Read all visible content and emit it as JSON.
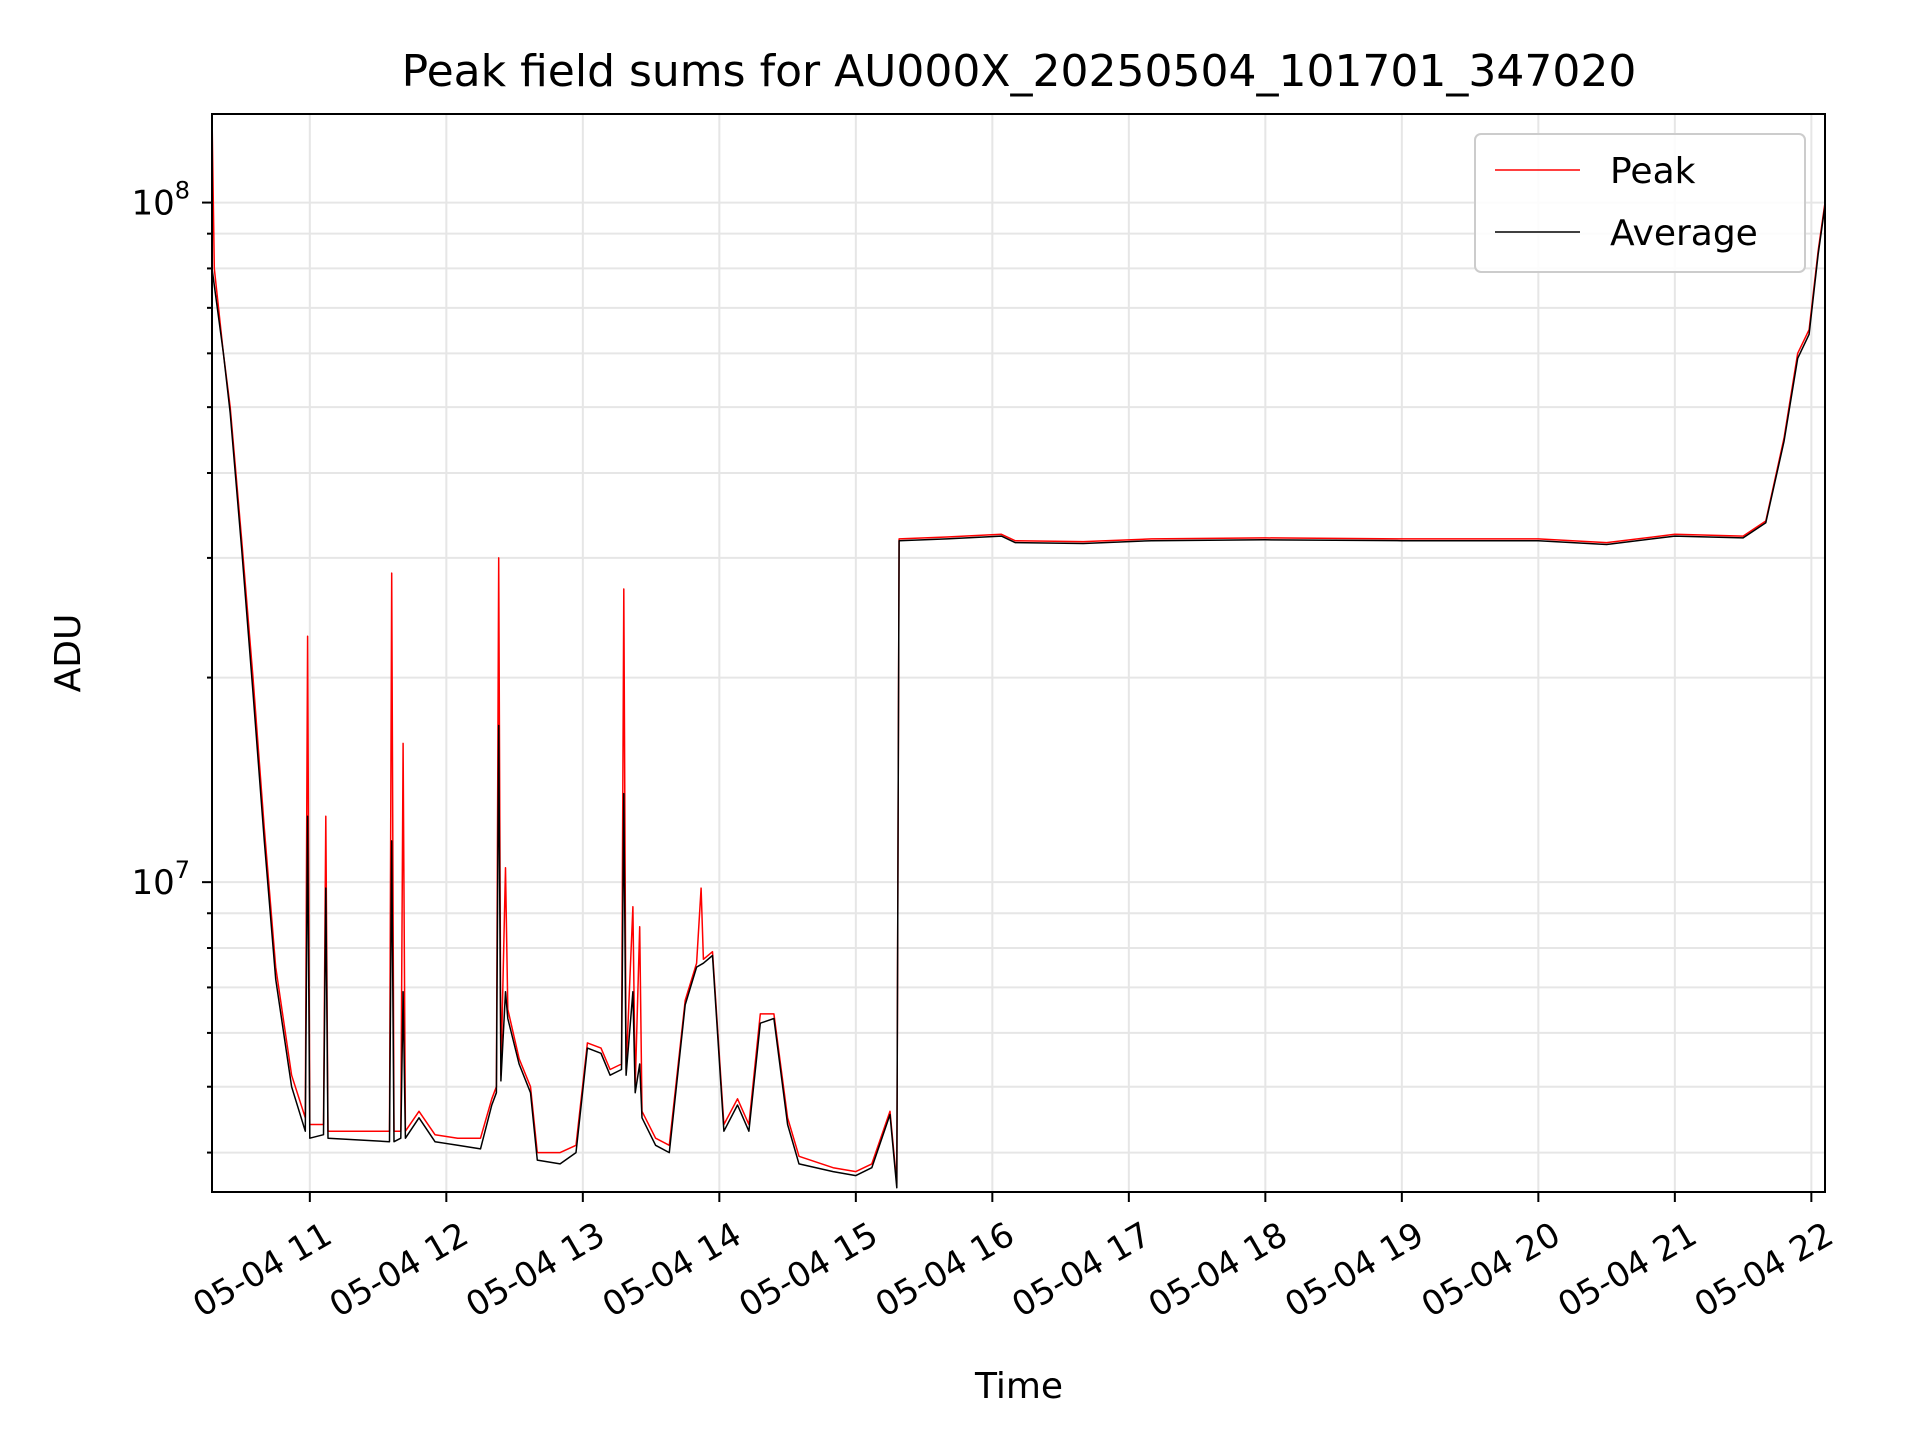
{
  "chart_data": {
    "type": "line",
    "title": "Peak field sums for AU000X_20250504_101701_347020",
    "xlabel": "Time",
    "ylabel": "ADU",
    "yscale": "log",
    "ylim": [
      3500000,
      135000000
    ],
    "xlim": [
      "2025-05-04 10:17",
      "2025-05-04 22:06"
    ],
    "grid": true,
    "legend_position": "top-right",
    "x_tick_labels": [
      "05-04 11",
      "05-04 12",
      "05-04 13",
      "05-04 14",
      "05-04 15",
      "05-04 16",
      "05-04 17",
      "05-04 18",
      "05-04 19",
      "05-04 20",
      "05-04 21",
      "05-04 22"
    ],
    "y_tick_labels": [
      {
        "base": "10",
        "exp": "7",
        "value": 10000000
      },
      {
        "base": "10",
        "exp": "8",
        "value": 100000000
      }
    ],
    "series": [
      {
        "name": "Peak",
        "color": "#ff0000",
        "points": [
          [
            "2025-05-04 10:17",
            135000000
          ],
          [
            "2025-05-04 10:18",
            80000000
          ],
          [
            "2025-05-04 10:22",
            60000000
          ],
          [
            "2025-05-04 10:25",
            50000000
          ],
          [
            "2025-05-04 10:30",
            32000000
          ],
          [
            "2025-05-04 10:35",
            20000000
          ],
          [
            "2025-05-04 10:40",
            12000000
          ],
          [
            "2025-05-04 10:45",
            7500000
          ],
          [
            "2025-05-04 10:52",
            5200000
          ],
          [
            "2025-05-04 10:58",
            4500000
          ],
          [
            "2025-05-04 10:59",
            23000000
          ],
          [
            "2025-05-04 11:00",
            4400000
          ],
          [
            "2025-05-04 11:06",
            4400000
          ],
          [
            "2025-05-04 11:07",
            12500000
          ],
          [
            "2025-05-04 11:08",
            4300000
          ],
          [
            "2025-05-04 11:35",
            4300000
          ],
          [
            "2025-05-04 11:36",
            28500000
          ],
          [
            "2025-05-04 11:37",
            4300000
          ],
          [
            "2025-05-04 11:40",
            4300000
          ],
          [
            "2025-05-04 11:41",
            16000000
          ],
          [
            "2025-05-04 11:42",
            4300000
          ],
          [
            "2025-05-04 11:48",
            4600000
          ],
          [
            "2025-05-04 11:55",
            4250000
          ],
          [
            "2025-05-04 12:05",
            4200000
          ],
          [
            "2025-05-04 12:15",
            4200000
          ],
          [
            "2025-05-04 12:20",
            4800000
          ],
          [
            "2025-05-04 12:22",
            5000000
          ],
          [
            "2025-05-04 12:23",
            30000000
          ],
          [
            "2025-05-04 12:24",
            5200000
          ],
          [
            "2025-05-04 12:26",
            10500000
          ],
          [
            "2025-05-04 12:27",
            6500000
          ],
          [
            "2025-05-04 12:32",
            5500000
          ],
          [
            "2025-05-04 12:37",
            5000000
          ],
          [
            "2025-05-04 12:40",
            4000000
          ],
          [
            "2025-05-04 12:50",
            4000000
          ],
          [
            "2025-05-04 12:57",
            4100000
          ],
          [
            "2025-05-04 13:02",
            5800000
          ],
          [
            "2025-05-04 13:08",
            5700000
          ],
          [
            "2025-05-04 13:12",
            5300000
          ],
          [
            "2025-05-04 13:17",
            5400000
          ],
          [
            "2025-05-04 13:18",
            27000000
          ],
          [
            "2025-05-04 13:19",
            5300000
          ],
          [
            "2025-05-04 13:22",
            9200000
          ],
          [
            "2025-05-04 13:23",
            5000000
          ],
          [
            "2025-05-04 13:25",
            8600000
          ],
          [
            "2025-05-04 13:26",
            4600000
          ],
          [
            "2025-05-04 13:32",
            4200000
          ],
          [
            "2025-05-04 13:38",
            4100000
          ],
          [
            "2025-05-04 13:45",
            6700000
          ],
          [
            "2025-05-04 13:50",
            7600000
          ],
          [
            "2025-05-04 13:52",
            9800000
          ],
          [
            "2025-05-04 13:53",
            7700000
          ],
          [
            "2025-05-04 13:57",
            7900000
          ],
          [
            "2025-05-04 14:02",
            4400000
          ],
          [
            "2025-05-04 14:08",
            4800000
          ],
          [
            "2025-05-04 14:13",
            4400000
          ],
          [
            "2025-05-04 14:18",
            6400000
          ],
          [
            "2025-05-04 14:24",
            6400000
          ],
          [
            "2025-05-04 14:30",
            4500000
          ],
          [
            "2025-05-04 14:35",
            3950000
          ],
          [
            "2025-05-04 14:50",
            3800000
          ],
          [
            "2025-05-04 15:00",
            3750000
          ],
          [
            "2025-05-04 15:07",
            3850000
          ],
          [
            "2025-05-04 15:15",
            4600000
          ],
          [
            "2025-05-04 15:18",
            3600000
          ],
          [
            "2025-05-04 15:19",
            32000000
          ],
          [
            "2025-05-04 15:40",
            32200000
          ],
          [
            "2025-05-04 16:04",
            32500000
          ],
          [
            "2025-05-04 16:10",
            31800000
          ],
          [
            "2025-05-04 16:40",
            31700000
          ],
          [
            "2025-05-04 17:10",
            32000000
          ],
          [
            "2025-05-04 18:00",
            32100000
          ],
          [
            "2025-05-04 19:00",
            32000000
          ],
          [
            "2025-05-04 20:00",
            32000000
          ],
          [
            "2025-05-04 20:30",
            31600000
          ],
          [
            "2025-05-04 21:00",
            32500000
          ],
          [
            "2025-05-04 21:30",
            32300000
          ],
          [
            "2025-05-04 21:40",
            34000000
          ],
          [
            "2025-05-04 21:48",
            45000000
          ],
          [
            "2025-05-04 21:54",
            60000000
          ],
          [
            "2025-05-04 21:59",
            65000000
          ],
          [
            "2025-05-04 22:03",
            85000000
          ],
          [
            "2025-05-04 22:06",
            100000000
          ]
        ]
      },
      {
        "name": "Average",
        "color": "#000000",
        "points": [
          [
            "2025-05-04 10:17",
            80000000
          ],
          [
            "2025-05-04 10:22",
            60000000
          ],
          [
            "2025-05-04 10:25",
            49000000
          ],
          [
            "2025-05-04 10:30",
            31000000
          ],
          [
            "2025-05-04 10:35",
            19000000
          ],
          [
            "2025-05-04 10:40",
            11500000
          ],
          [
            "2025-05-04 10:45",
            7200000
          ],
          [
            "2025-05-04 10:52",
            5000000
          ],
          [
            "2025-05-04 10:58",
            4300000
          ],
          [
            "2025-05-04 10:59",
            12500000
          ],
          [
            "2025-05-04 11:00",
            4200000
          ],
          [
            "2025-05-04 11:06",
            4250000
          ],
          [
            "2025-05-04 11:07",
            9800000
          ],
          [
            "2025-05-04 11:08",
            4200000
          ],
          [
            "2025-05-04 11:35",
            4150000
          ],
          [
            "2025-05-04 11:36",
            11500000
          ],
          [
            "2025-05-04 11:37",
            4150000
          ],
          [
            "2025-05-04 11:40",
            4200000
          ],
          [
            "2025-05-04 11:41",
            6900000
          ],
          [
            "2025-05-04 11:42",
            4200000
          ],
          [
            "2025-05-04 11:48",
            4500000
          ],
          [
            "2025-05-04 11:55",
            4150000
          ],
          [
            "2025-05-04 12:05",
            4100000
          ],
          [
            "2025-05-04 12:15",
            4050000
          ],
          [
            "2025-05-04 12:20",
            4700000
          ],
          [
            "2025-05-04 12:22",
            4900000
          ],
          [
            "2025-05-04 12:23",
            17000000
          ],
          [
            "2025-05-04 12:24",
            5100000
          ],
          [
            "2025-05-04 12:26",
            6900000
          ],
          [
            "2025-05-04 12:27",
            6300000
          ],
          [
            "2025-05-04 12:32",
            5400000
          ],
          [
            "2025-05-04 12:37",
            4900000
          ],
          [
            "2025-05-04 12:40",
            3900000
          ],
          [
            "2025-05-04 12:50",
            3850000
          ],
          [
            "2025-05-04 12:57",
            4000000
          ],
          [
            "2025-05-04 13:02",
            5700000
          ],
          [
            "2025-05-04 13:08",
            5600000
          ],
          [
            "2025-05-04 13:12",
            5200000
          ],
          [
            "2025-05-04 13:17",
            5300000
          ],
          [
            "2025-05-04 13:18",
            13500000
          ],
          [
            "2025-05-04 13:19",
            5200000
          ],
          [
            "2025-05-04 13:22",
            6900000
          ],
          [
            "2025-05-04 13:23",
            4900000
          ],
          [
            "2025-05-04 13:25",
            5400000
          ],
          [
            "2025-05-04 13:26",
            4500000
          ],
          [
            "2025-05-04 13:32",
            4100000
          ],
          [
            "2025-05-04 13:38",
            4000000
          ],
          [
            "2025-05-04 13:45",
            6600000
          ],
          [
            "2025-05-04 13:50",
            7500000
          ],
          [
            "2025-05-04 13:53",
            7600000
          ],
          [
            "2025-05-04 13:57",
            7800000
          ],
          [
            "2025-05-04 14:02",
            4300000
          ],
          [
            "2025-05-04 14:08",
            4700000
          ],
          [
            "2025-05-04 14:13",
            4300000
          ],
          [
            "2025-05-04 14:18",
            6200000
          ],
          [
            "2025-05-04 14:24",
            6300000
          ],
          [
            "2025-05-04 14:30",
            4400000
          ],
          [
            "2025-05-04 14:35",
            3850000
          ],
          [
            "2025-05-04 14:50",
            3750000
          ],
          [
            "2025-05-04 15:00",
            3700000
          ],
          [
            "2025-05-04 15:07",
            3800000
          ],
          [
            "2025-05-04 15:15",
            4550000
          ],
          [
            "2025-05-04 15:18",
            3550000
          ],
          [
            "2025-05-04 15:19",
            31800000
          ],
          [
            "2025-05-04 15:40",
            32000000
          ],
          [
            "2025-05-04 16:04",
            32300000
          ],
          [
            "2025-05-04 16:10",
            31600000
          ],
          [
            "2025-05-04 16:40",
            31500000
          ],
          [
            "2025-05-04 17:10",
            31800000
          ],
          [
            "2025-05-04 18:00",
            31900000
          ],
          [
            "2025-05-04 19:00",
            31800000
          ],
          [
            "2025-05-04 20:00",
            31800000
          ],
          [
            "2025-05-04 20:30",
            31400000
          ],
          [
            "2025-05-04 21:00",
            32300000
          ],
          [
            "2025-05-04 21:30",
            32100000
          ],
          [
            "2025-05-04 21:40",
            33800000
          ],
          [
            "2025-05-04 21:48",
            44500000
          ],
          [
            "2025-05-04 21:54",
            59000000
          ],
          [
            "2025-05-04 21:59",
            64000000
          ],
          [
            "2025-05-04 22:03",
            84000000
          ],
          [
            "2025-05-04 22:06",
            99000000
          ]
        ]
      }
    ]
  }
}
